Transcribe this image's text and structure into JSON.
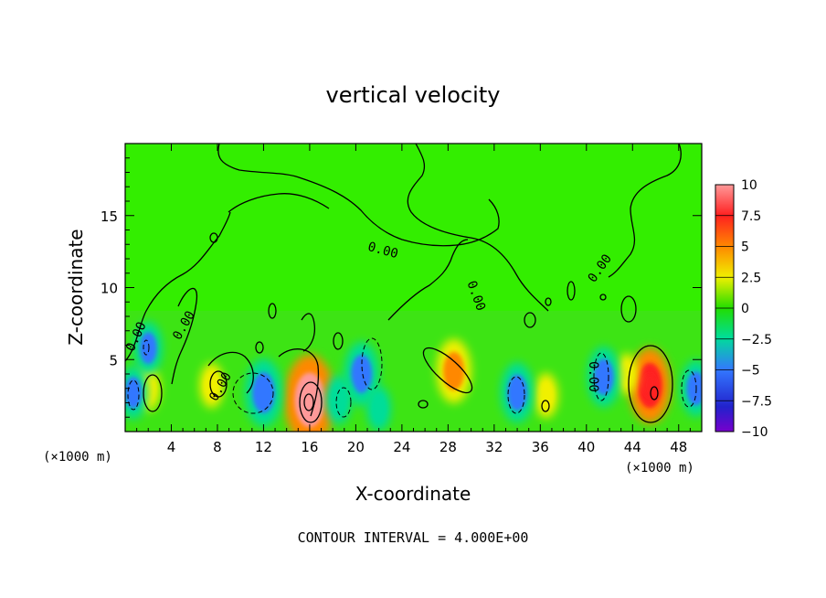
{
  "chart_data": {
    "type": "heatmap",
    "title": "vertical velocity",
    "xlabel": "X-coordinate",
    "ylabel": "Z-coordinate",
    "x_unit_left": "(×1000 m)",
    "x_unit_right": "(×1000 m)",
    "footer": "CONTOUR INTERVAL = 4.000E+00",
    "xlim": [
      0,
      50
    ],
    "ylim": [
      0,
      20
    ],
    "x_ticks": [
      4,
      8,
      12,
      16,
      20,
      24,
      28,
      32,
      36,
      40,
      44,
      48
    ],
    "x_tick_labels": [
      "4",
      "8",
      "12",
      "16",
      "20",
      "24",
      "28",
      "32",
      "36",
      "40",
      "44",
      "48"
    ],
    "y_ticks": [
      5,
      10,
      15
    ],
    "y_tick_labels": [
      "5",
      "10",
      "15"
    ],
    "contour_labels": [
      "0.00",
      "0.00",
      "0.00",
      "0.00",
      "0.00",
      "0.00",
      "0.00"
    ],
    "colorbar": {
      "min": -10,
      "max": 10,
      "tick_values": [
        10,
        7.5,
        5,
        2.5,
        0,
        -2.5,
        -5,
        -7.5,
        -10
      ],
      "tick_labels": [
        "10",
        "7.5",
        "5",
        "2.5",
        "0",
        "−2.5",
        "−5",
        "−7.5",
        "−10"
      ],
      "colors": [
        "#ff9999",
        "#ff2020",
        "#ff8800",
        "#f0f000",
        "#22dd00",
        "#00dd99",
        "#3377ff",
        "#2222cc",
        "#7700cc"
      ]
    },
    "features": [
      {
        "x": 16,
        "z": 2.2,
        "value": 9
      },
      {
        "x": 45.5,
        "z": 3.2,
        "value": 7
      },
      {
        "x": 28.5,
        "z": 4.2,
        "value": 5.5
      },
      {
        "x": 2,
        "z": 3,
        "value": 3
      },
      {
        "x": 7.5,
        "z": 3.2,
        "value": 3
      },
      {
        "x": 36.5,
        "z": 2.5,
        "value": 3
      },
      {
        "x": 43.5,
        "z": 4,
        "value": 2.5
      },
      {
        "x": 12,
        "z": 2.7,
        "value": -6
      },
      {
        "x": 20.5,
        "z": 4,
        "value": -5.5
      },
      {
        "x": 34,
        "z": 2.7,
        "value": -5
      },
      {
        "x": 41.5,
        "z": 3.8,
        "value": -5
      },
      {
        "x": 49.5,
        "z": 3,
        "value": -4.5
      },
      {
        "x": 0.7,
        "z": 2.7,
        "value": -4
      },
      {
        "x": 18.5,
        "z": 2.2,
        "value": -3.5
      },
      {
        "x": 22,
        "z": 1.6,
        "value": -3
      },
      {
        "x": 2,
        "z": 5.8,
        "value": -4
      }
    ]
  }
}
